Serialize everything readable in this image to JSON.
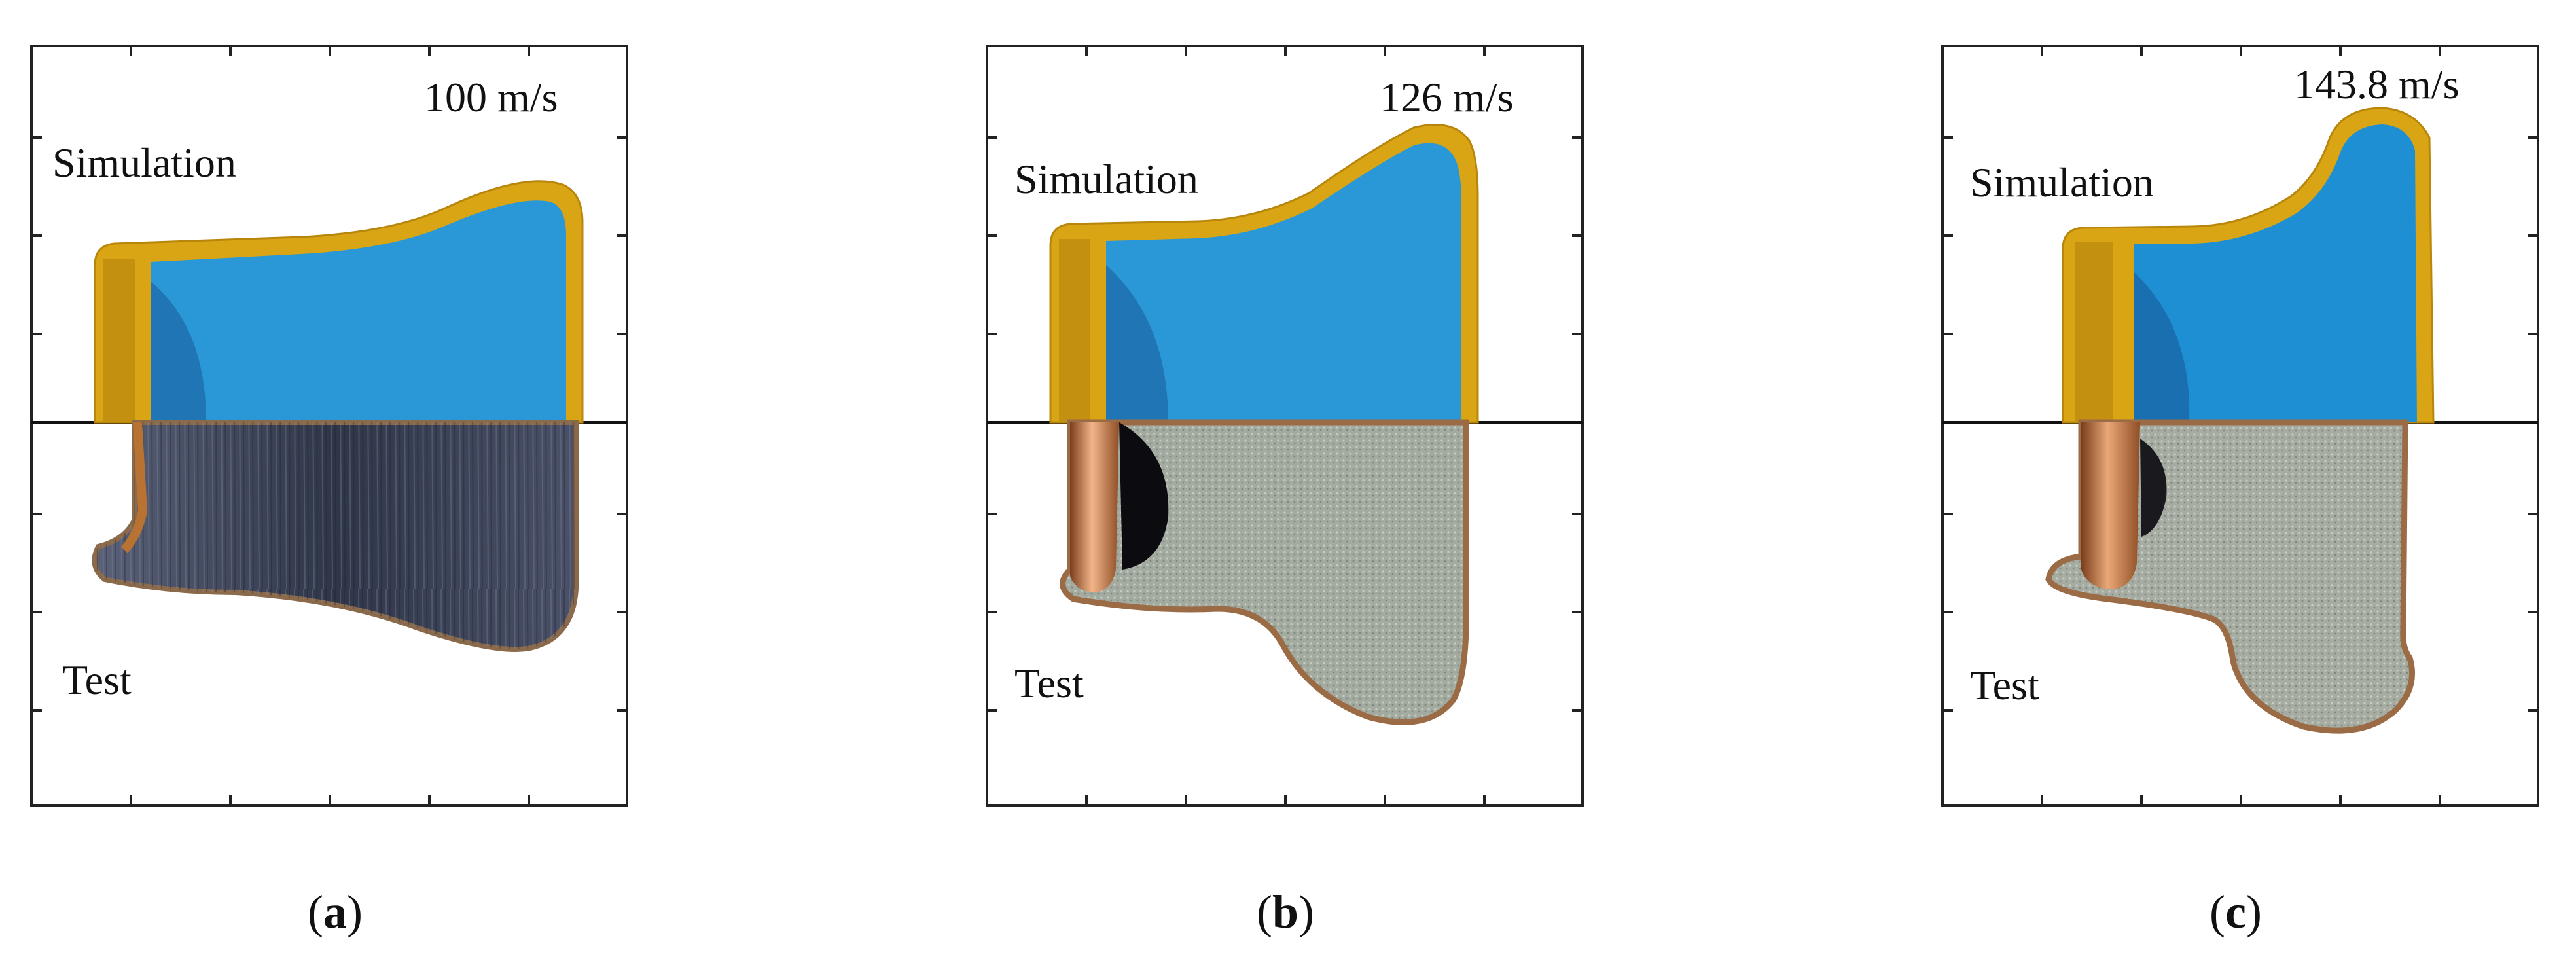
{
  "figure": {
    "panels": [
      {
        "id": "a",
        "velocity_label": "100 m/s",
        "top_label": "Simulation",
        "bottom_label": "Test",
        "caption_letter": "a"
      },
      {
        "id": "b",
        "velocity_label": "126 m/s",
        "top_label": "Simulation",
        "bottom_label": "Test",
        "caption_letter": "b"
      },
      {
        "id": "c",
        "velocity_label": "143.8 m/s",
        "top_label": "Simulation",
        "bottom_label": "Test",
        "caption_letter": "c"
      }
    ],
    "caption_open": "(",
    "caption_close": ")"
  },
  "colors": {
    "jacket_gold": "#d4a017",
    "core_blue": "#2196d3",
    "core_dark": "#1565a8",
    "test_dark": "#3a4258",
    "test_grey": "#9aa39a",
    "copper": "#b87333"
  }
}
